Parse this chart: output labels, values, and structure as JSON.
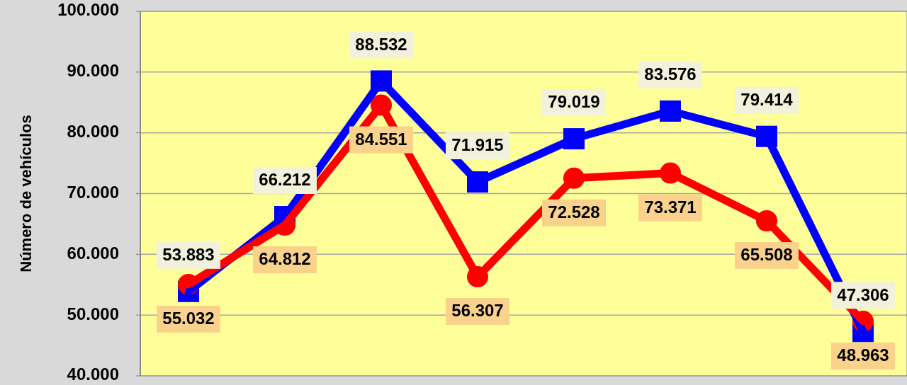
{
  "chart_data": {
    "type": "line",
    "ylabel": "Número de vehículos",
    "categories": [
      null,
      null,
      null,
      null,
      null,
      null,
      null,
      null
    ],
    "series": [
      {
        "color": "#0000ff",
        "marker": "square",
        "values": [
          53883,
          66212,
          88532,
          71915,
          79019,
          83576,
          79414,
          47306
        ],
        "value_labels": [
          "53.883",
          "66.212",
          "88.532",
          "71.915",
          "79.019",
          "83.576",
          "79.414",
          "47.306"
        ]
      },
      {
        "color": "#ff0000",
        "marker": "circle",
        "values": [
          55032,
          64812,
          84551,
          56307,
          72528,
          73371,
          65508,
          48963
        ],
        "value_labels": [
          "55.032",
          "64.812",
          "84.551",
          "56.307",
          "72.528",
          "73.371",
          "65.508",
          "48.963"
        ]
      }
    ],
    "ylim": [
      40000,
      100000
    ],
    "yticks": [
      {
        "value": 40000,
        "label": "40.000"
      },
      {
        "value": 50000,
        "label": "50.000"
      },
      {
        "value": 60000,
        "label": "60.000"
      },
      {
        "value": 70000,
        "label": "70.000"
      },
      {
        "value": 80000,
        "label": "80.000"
      },
      {
        "value": 90000,
        "label": "90.000"
      },
      {
        "value": 100000,
        "label": "100.000"
      }
    ],
    "grid": "y",
    "tick_labels": "y"
  }
}
